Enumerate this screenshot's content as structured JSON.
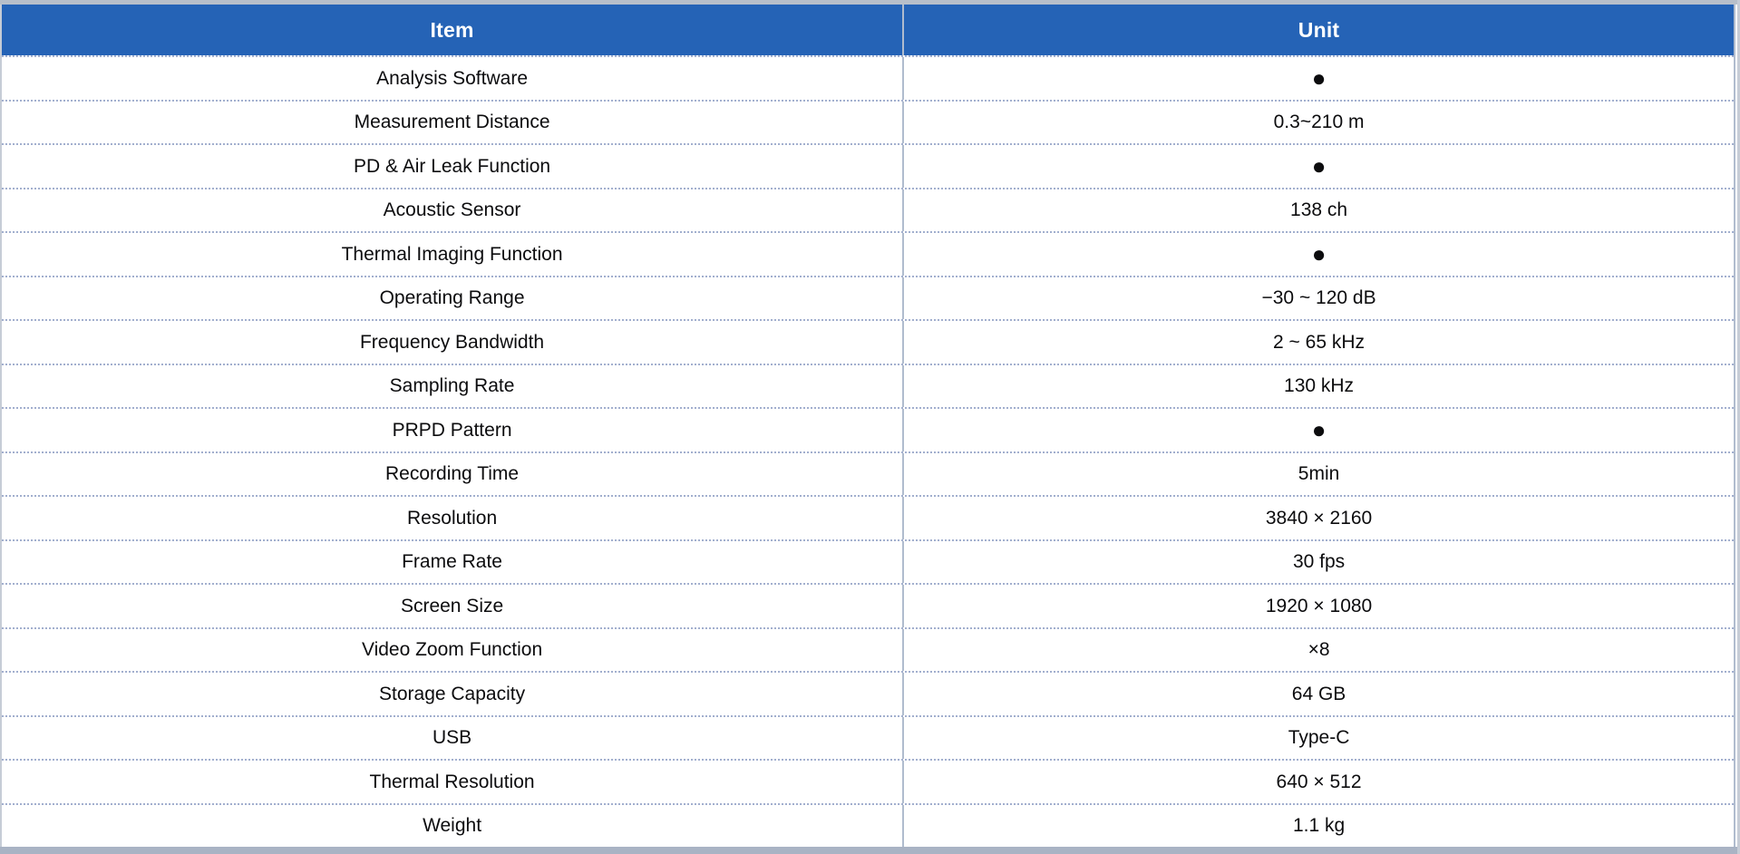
{
  "table": {
    "columns": [
      "Item",
      "Unit"
    ],
    "check_symbol": "●",
    "rows": [
      {
        "item": "Analysis Software",
        "unit": "●"
      },
      {
        "item": "Measurement Distance",
        "unit": "0.3~210 m"
      },
      {
        "item": "PD & Air Leak Function",
        "unit": "●"
      },
      {
        "item": "Acoustic Sensor",
        "unit": "138 ch"
      },
      {
        "item": "Thermal Imaging Function",
        "unit": "●"
      },
      {
        "item": "Operating Range",
        "unit": "−30 ~ 120 dB"
      },
      {
        "item": "Frequency Bandwidth",
        "unit": "2 ~ 65 kHz"
      },
      {
        "item": "Sampling Rate",
        "unit": "130 kHz"
      },
      {
        "item": "PRPD Pattern",
        "unit": "●"
      },
      {
        "item": "Recording Time",
        "unit": "5min"
      },
      {
        "item": "Resolution",
        "unit": "3840 × 2160"
      },
      {
        "item": "Frame Rate",
        "unit": "30 fps"
      },
      {
        "item": "Screen Size",
        "unit": "1920 × 1080"
      },
      {
        "item": "Video Zoom Function",
        "unit": "×8"
      },
      {
        "item": "Storage Capacity",
        "unit": "64 GB"
      },
      {
        "item": "USB",
        "unit": "Type-C"
      },
      {
        "item": "Thermal Resolution",
        "unit": "640 × 512"
      },
      {
        "item": "Weight",
        "unit": "1.1 kg"
      }
    ]
  },
  "colors": {
    "header_bg": "#2563B6",
    "header_text": "#FFFFFF",
    "body_text": "#0C0C0E",
    "divider": "#B0BCCE",
    "dotted": "#A2AFCE",
    "top_bar": "#B7BFCA",
    "bottom_bar": "#A9B3C4",
    "outer_edge": "#C6CCD6"
  }
}
